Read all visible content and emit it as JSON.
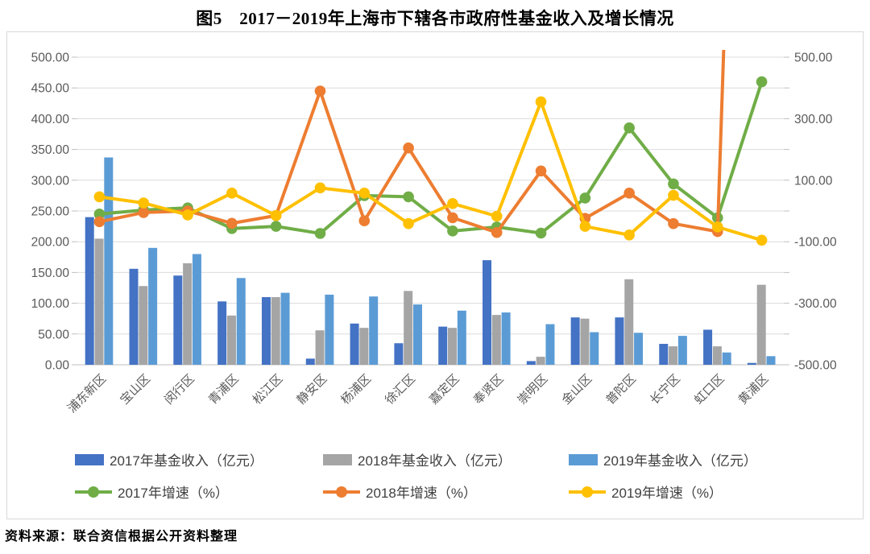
{
  "title": "图5　2017－2019年上海市下辖各市政府性基金收入及增长情况",
  "source": "资料来源：联合资信根据公开资料整理",
  "colors": {
    "bar_2017": "#4472C4",
    "bar_2018": "#A5A5A5",
    "bar_2019": "#5B9BD5",
    "line_2017": "#70AD47",
    "line_2018": "#ED7D31",
    "line_2019": "#FFC000",
    "gridline": "#DCDCDC",
    "axis_line": "#BFBFBF",
    "axis_text": "#595959"
  },
  "chart_data": {
    "type": "combo-bar-line",
    "title": "图5　2017－2019年上海市下辖各市政府性基金收入及增长情况",
    "grid": true,
    "legend_position": "bottom",
    "categories": [
      "浦东新区",
      "宝山区",
      "闵行区",
      "青浦区",
      "松江区",
      "静安区",
      "杨浦区",
      "徐汇区",
      "嘉定区",
      "奉贤区",
      "崇明区",
      "金山区",
      "普陀区",
      "长宁区",
      "虹口区",
      "黄浦区"
    ],
    "bar_series": [
      {
        "name": "2017年基金收入（亿元）",
        "color": "#4472C4",
        "axis": "left",
        "values": [
          240,
          156,
          145,
          103,
          110,
          10,
          67,
          35,
          62,
          170,
          6,
          77,
          77,
          34,
          57,
          3
        ]
      },
      {
        "name": "2018年基金收入（亿元）",
        "color": "#A5A5A5",
        "axis": "left",
        "values": [
          205,
          128,
          165,
          80,
          110,
          56,
          60,
          120,
          60,
          81,
          13,
          75,
          139,
          30,
          30,
          130
        ]
      },
      {
        "name": "2019年基金收入（亿元）",
        "color": "#5B9BD5",
        "axis": "left",
        "values": [
          337,
          190,
          180,
          141,
          117,
          114,
          111,
          98,
          88,
          85,
          66,
          53,
          52,
          47,
          20,
          14
        ]
      }
    ],
    "line_series": [
      {
        "name": "2017年增速（%）",
        "color": "#70AD47",
        "axis": "right",
        "values": [
          -10,
          3,
          10,
          -57,
          -50,
          -73,
          50,
          46,
          -65,
          -52,
          -72,
          42,
          270,
          88,
          -22,
          420
        ]
      },
      {
        "name": "2018年增速（%）",
        "color": "#ED7D31",
        "axis": "right",
        "values": [
          -35,
          -5,
          0,
          -40,
          -15,
          390,
          -32,
          205,
          -22,
          -70,
          130,
          -24,
          58,
          -41,
          -67,
          4200
        ]
      },
      {
        "name": "2019年增速（%）",
        "color": "#FFC000",
        "axis": "right",
        "values": [
          46,
          26,
          -13,
          58,
          -15,
          75,
          58,
          -41,
          24,
          -17,
          355,
          -50,
          -78,
          51,
          -52,
          -95
        ]
      }
    ],
    "left_axis": {
      "min": 0,
      "max": 500,
      "step": 50,
      "tick_labels": [
        "0.00",
        "50.00",
        "100.00",
        "150.00",
        "200.00",
        "250.00",
        "300.00",
        "350.00",
        "400.00",
        "450.00",
        "500.00"
      ]
    },
    "right_axis": {
      "min": -500,
      "max": 500,
      "label_step": 200,
      "minor_tick_step": 100,
      "tick_labels": [
        "500.00",
        "300.00",
        "100.00",
        "-100.00",
        "-300.00",
        "-500.00"
      ]
    }
  }
}
